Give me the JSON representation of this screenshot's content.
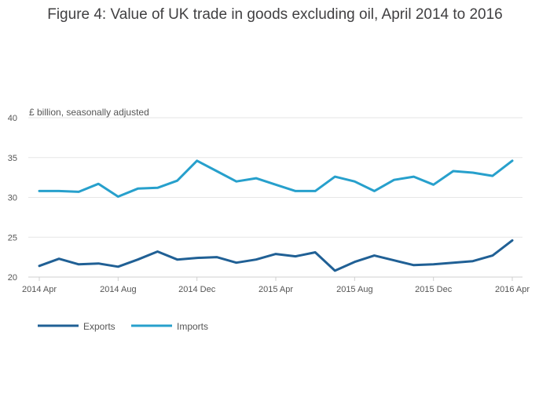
{
  "chart_data": {
    "type": "line",
    "title": "Figure 4: Value of UK trade in goods excluding oil, April 2014 to 2016",
    "ylabel": "£ billion, seasonally adjusted",
    "xlabel": "",
    "ylim": [
      20,
      40
    ],
    "yticks": [
      "40",
      "35",
      "30",
      "25",
      "20"
    ],
    "xtick_labels": [
      "2014 Apr",
      "2014 Aug",
      "2014 Dec",
      "2015 Apr",
      "2015 Aug",
      "2015 Dec",
      "2016 Apr"
    ],
    "x": [
      "2014 Apr",
      "2014 May",
      "2014 Jun",
      "2014 Jul",
      "2014 Aug",
      "2014 Sep",
      "2014 Oct",
      "2014 Nov",
      "2014 Dec",
      "2015 Jan",
      "2015 Feb",
      "2015 Mar",
      "2015 Apr",
      "2015 May",
      "2015 Jun",
      "2015 Jul",
      "2015 Aug",
      "2015 Sep",
      "2015 Oct",
      "2015 Nov",
      "2015 Dec",
      "2016 Jan",
      "2016 Feb",
      "2016 Mar",
      "2016 Apr"
    ],
    "series": [
      {
        "name": "Exports",
        "color": "#206095",
        "values": [
          21.4,
          22.3,
          21.6,
          21.7,
          21.3,
          22.2,
          23.2,
          22.2,
          22.4,
          22.5,
          21.8,
          22.2,
          22.9,
          22.6,
          23.1,
          20.8,
          21.9,
          22.7,
          22.1,
          21.5,
          21.6,
          21.8,
          22.0,
          22.7,
          24.6
        ]
      },
      {
        "name": "Imports",
        "color": "#27a0cc",
        "values": [
          30.8,
          30.8,
          30.7,
          31.7,
          30.1,
          31.1,
          31.2,
          32.1,
          34.6,
          33.3,
          32.0,
          32.4,
          31.6,
          30.8,
          30.8,
          32.6,
          32.0,
          30.8,
          32.2,
          32.6,
          31.6,
          33.3,
          33.1,
          32.7,
          34.6
        ]
      }
    ],
    "legend": "bottom-left"
  }
}
